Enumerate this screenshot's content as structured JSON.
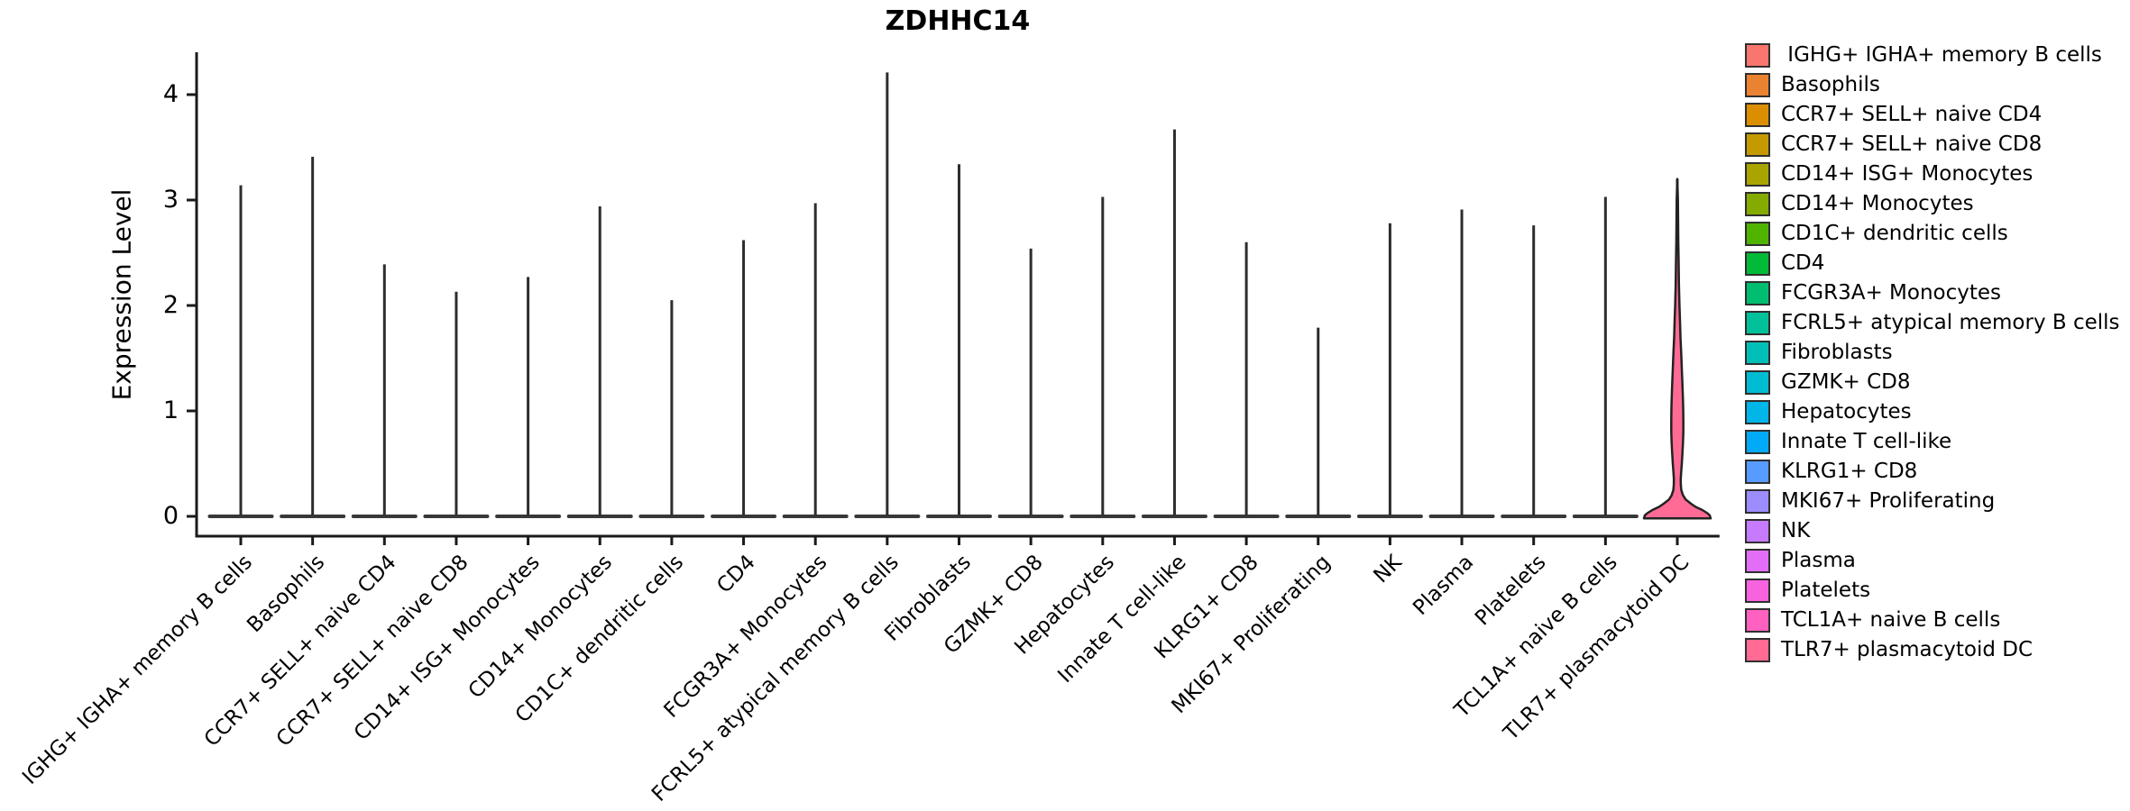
{
  "chart_data": {
    "type": "violin",
    "title": "ZDHHC14",
    "xlabel": "",
    "ylabel": "Expression Level",
    "ylim": [
      -0.2,
      4.4
    ],
    "y_ticks": [
      0,
      1,
      2,
      3,
      4
    ],
    "grid": false,
    "legend_position": "right",
    "categories": [
      "IGHG+ IGHA+ memory B cells",
      "Basophils",
      "CCR7+ SELL+ naive CD4",
      "CCR7+ SELL+ naive CD8",
      "CD14+ ISG+ Monocytes",
      "CD14+ Monocytes",
      "CD1C+ dendritic cells",
      "CD4",
      "FCGR3A+ Monocytes",
      "FCRL5+ atypical memory B cells",
      "Fibroblasts",
      "GZMK+ CD8",
      "Hepatocytes",
      "Innate T cell-like",
      "KLRG1+ CD8",
      "MKI67+ Proliferating",
      "NK",
      "Plasma",
      "Platelets",
      "TCL1A+ naive B cells",
      "TLR7+ plasmacytoid DC"
    ],
    "max_expression_values": [
      3.14,
      3.41,
      2.39,
      2.13,
      2.27,
      2.94,
      2.05,
      2.62,
      2.97,
      4.21,
      3.34,
      2.54,
      3.03,
      3.67,
      2.6,
      1.79,
      2.78,
      2.91,
      2.76,
      3.03,
      3.2
    ],
    "bulk_expression_at_zero": true,
    "wide_violin_category": "TLR7+ plasmacytoid DC",
    "wide_violin_profile": [
      [
        3.2,
        0.0
      ],
      [
        3.0,
        0.02
      ],
      [
        2.8,
        0.025
      ],
      [
        2.6,
        0.03
      ],
      [
        2.4,
        0.04
      ],
      [
        2.2,
        0.05
      ],
      [
        2.0,
        0.065
      ],
      [
        1.85,
        0.08
      ],
      [
        1.7,
        0.095
      ],
      [
        1.55,
        0.115
      ],
      [
        1.4,
        0.135
      ],
      [
        1.25,
        0.155
      ],
      [
        1.1,
        0.17
      ],
      [
        1.0,
        0.178
      ],
      [
        0.9,
        0.182
      ],
      [
        0.8,
        0.18
      ],
      [
        0.7,
        0.17
      ],
      [
        0.6,
        0.155
      ],
      [
        0.5,
        0.135
      ],
      [
        0.42,
        0.115
      ],
      [
        0.35,
        0.103
      ],
      [
        0.3,
        0.105
      ],
      [
        0.25,
        0.12
      ],
      [
        0.2,
        0.17
      ],
      [
        0.16,
        0.25
      ],
      [
        0.12,
        0.41
      ],
      [
        0.09,
        0.55
      ],
      [
        0.06,
        0.75
      ],
      [
        0.03,
        0.9
      ],
      [
        0.01,
        0.97
      ],
      [
        -0.02,
        1.0
      ]
    ]
  },
  "legend": {
    "items": [
      {
        "label": " IGHG+ IGHA+ memory B cells",
        "color": "#F8766D"
      },
      {
        "label": "Basophils",
        "color": "#EA8331"
      },
      {
        "label": "CCR7+ SELL+ naive CD4",
        "color": "#DB8E00"
      },
      {
        "label": "CCR7+ SELL+ naive CD8",
        "color": "#C49A00"
      },
      {
        "label": "CD14+ ISG+ Monocytes",
        "color": "#AAA400"
      },
      {
        "label": "CD14+ Monocytes",
        "color": "#85AB00"
      },
      {
        "label": "CD1C+ dendritic cells",
        "color": "#4FB300"
      },
      {
        "label": "CD4",
        "color": "#00BA38"
      },
      {
        "label": "FCGR3A+ Monocytes",
        "color": "#00BE6F"
      },
      {
        "label": "FCRL5+ atypical memory B cells",
        "color": "#00C19A"
      },
      {
        "label": "Fibroblasts",
        "color": "#00BFB8"
      },
      {
        "label": "GZMK+ CD8",
        "color": "#00BCD2"
      },
      {
        "label": "Hepatocytes",
        "color": "#00B5E8"
      },
      {
        "label": "Innate T cell-like",
        "color": "#00AAF6"
      },
      {
        "label": "KLRG1+ CD8",
        "color": "#579BFF"
      },
      {
        "label": "MKI67+ Proliferating",
        "color": "#9C8DFF"
      },
      {
        "label": "NK",
        "color": "#C67BFF"
      },
      {
        "label": "Plasma",
        "color": "#E26EF7"
      },
      {
        "label": "Platelets",
        "color": "#F763DF"
      },
      {
        "label": "TCL1A+ naive B cells",
        "color": "#FF61C0"
      },
      {
        "label": "TLR7+ plasmacytoid DC",
        "color": "#FF6B94"
      }
    ]
  }
}
